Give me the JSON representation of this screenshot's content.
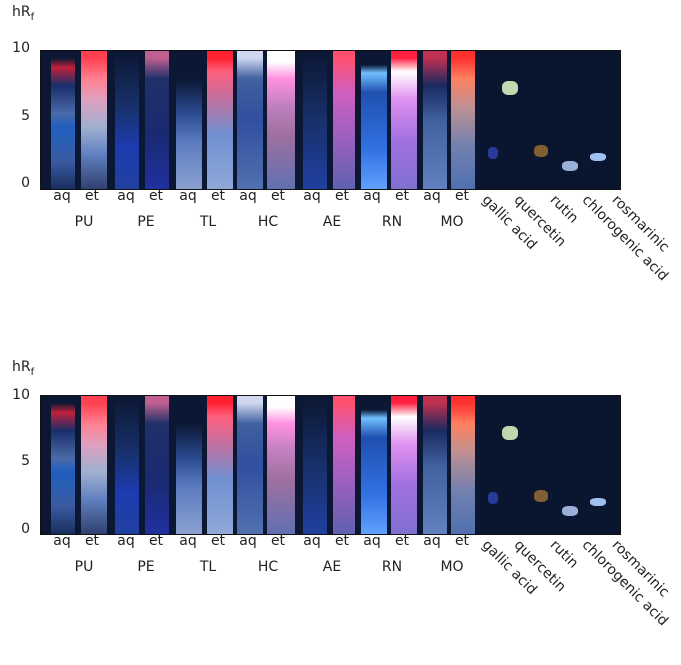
{
  "y_axis": {
    "label": "hR",
    "sub": "f",
    "ticks": [
      "10",
      "5",
      "0"
    ]
  },
  "lane_labels": [
    "aq",
    "et",
    "aq",
    "et",
    "aq",
    "et",
    "aq",
    "et",
    "aq",
    "et",
    "aq",
    "et",
    "aq",
    "et"
  ],
  "groups": [
    "PU",
    "PE",
    "TL",
    "HC",
    "AE",
    "RN",
    "MO"
  ],
  "standards": [
    "gallic acid",
    "quercetin",
    "rutin",
    "chlorogenic acid",
    "rosmarinic"
  ]
}
